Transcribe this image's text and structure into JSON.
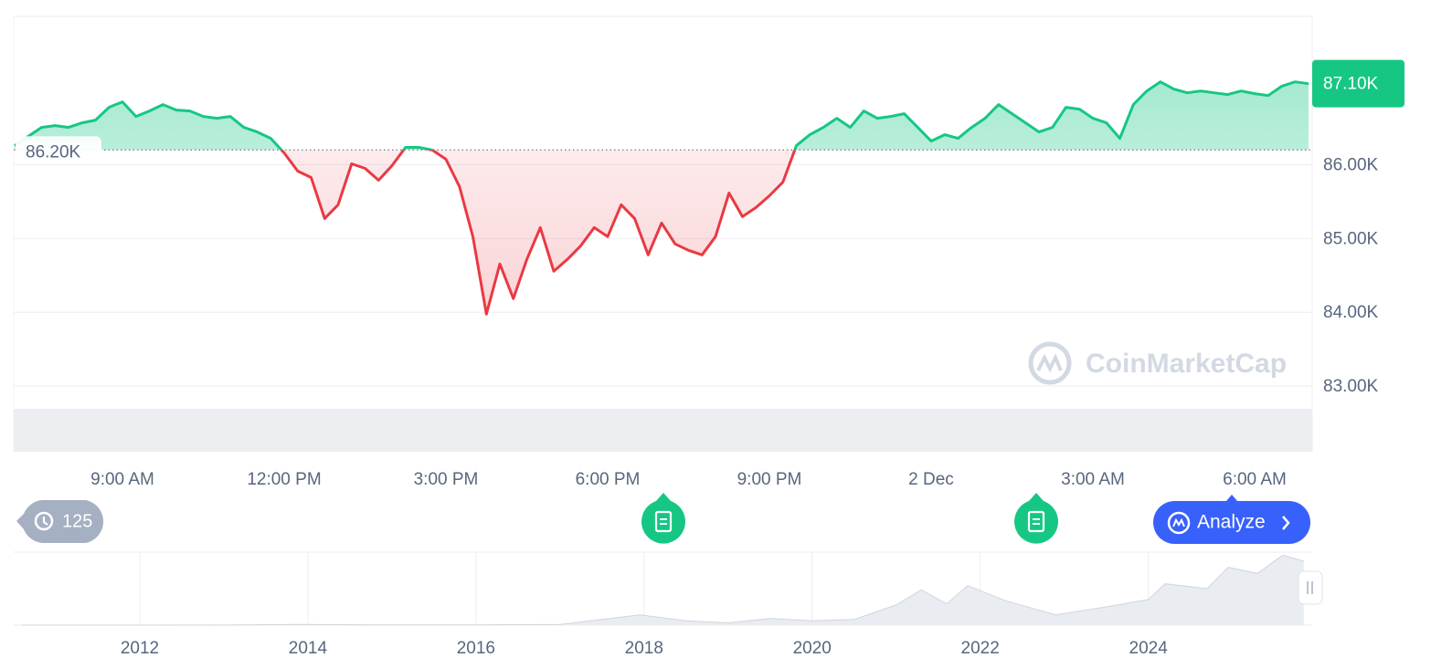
{
  "chart_data": {
    "type": "line",
    "categories": [
      null,
      null,
      null,
      null,
      null,
      null,
      null,
      null,
      "9:00 AM",
      null,
      null,
      null,
      null,
      null,
      null,
      null,
      null,
      null,
      null,
      null,
      "12:00 PM",
      null,
      null,
      null,
      null,
      null,
      null,
      null,
      null,
      null,
      null,
      null,
      "3:00 PM",
      null,
      null,
      null,
      null,
      null,
      null,
      null,
      null,
      null,
      null,
      null,
      "6:00 PM",
      null,
      null,
      null,
      null,
      null,
      null,
      null,
      null,
      null,
      null,
      null,
      "9:00 PM",
      null,
      null,
      null,
      null,
      null,
      null,
      null,
      null,
      null,
      null,
      null,
      "2 Dec",
      null,
      null,
      null,
      null,
      null,
      null,
      null,
      null,
      null,
      null,
      null,
      "3:00 AM",
      null,
      null,
      null,
      null,
      null,
      null,
      null,
      null,
      null,
      null,
      null,
      "6:00 AM",
      null,
      null,
      null,
      null
    ],
    "values": [
      86259,
      86383,
      86506,
      86531,
      86506,
      86568,
      86605,
      86778,
      86852,
      86654,
      86728,
      86815,
      86741,
      86728,
      86654,
      86630,
      86654,
      86506,
      86444,
      86358,
      86160,
      85914,
      85827,
      85272,
      85457,
      86012,
      85951,
      85790,
      85988,
      86235,
      86235,
      86198,
      86074,
      85704,
      85025,
      83975,
      84654,
      84185,
      84716,
      85148,
      84556,
      84716,
      84901,
      85148,
      85025,
      85457,
      85272,
      84778,
      85210,
      84926,
      84840,
      84778,
      85025,
      85617,
      85296,
      85420,
      85580,
      85765,
      86259,
      86407,
      86506,
      86630,
      86506,
      86728,
      86630,
      86654,
      86691,
      86506,
      86321,
      86407,
      86358,
      86506,
      86630,
      86815,
      86691,
      86568,
      86444,
      86506,
      86778,
      86753,
      86630,
      86568,
      86358,
      86815,
      87000,
      87123,
      87025,
      86975,
      87000,
      86975,
      86951,
      87000,
      86963,
      86938,
      87062,
      87123,
      87099
    ],
    "color_up": "#16c784",
    "color_down": "#ea3943",
    "baseline": {
      "value": 86200,
      "label": "86.20K"
    },
    "last_price": {
      "value": 87100,
      "label": "87.10K"
    },
    "ylim": [
      82110,
      88010
    ],
    "yticks": [
      {
        "value": 83000,
        "label": "83.00K"
      },
      {
        "value": 84000,
        "label": "84.00K"
      },
      {
        "value": 85000,
        "label": "85.00K"
      },
      {
        "value": 86000,
        "label": "86.00K"
      }
    ],
    "grid": true,
    "watermark": "CoinMarketCap",
    "navigator": {
      "x": [
        2010.6,
        2011.5,
        2012,
        2013,
        2013.9,
        2014.5,
        2015,
        2016,
        2017,
        2017.95,
        2018.5,
        2019,
        2019.5,
        2020,
        2020.5,
        2021,
        2021.3,
        2021.6,
        2021.85,
        2022.3,
        2022.9,
        2023.5,
        2024,
        2024.2,
        2024.7,
        2024.95,
        2025.3,
        2025.6,
        2025.85
      ],
      "values": [
        0,
        10,
        5,
        100,
        1000,
        600,
        250,
        400,
        1000,
        17000,
        7000,
        3700,
        11000,
        7000,
        9500,
        33000,
        58000,
        35000,
        65000,
        40000,
        17000,
        30000,
        42000,
        68000,
        60000,
        95000,
        85000,
        115000,
        105000
      ],
      "xlim": [
        2010.5,
        2025.95
      ],
      "xticks": [
        2012,
        2014,
        2016,
        2018,
        2020,
        2022,
        2024
      ],
      "ylim": [
        0,
        120000
      ]
    }
  },
  "ui": {
    "history_count": 125,
    "analyze_button": "Analyze"
  }
}
